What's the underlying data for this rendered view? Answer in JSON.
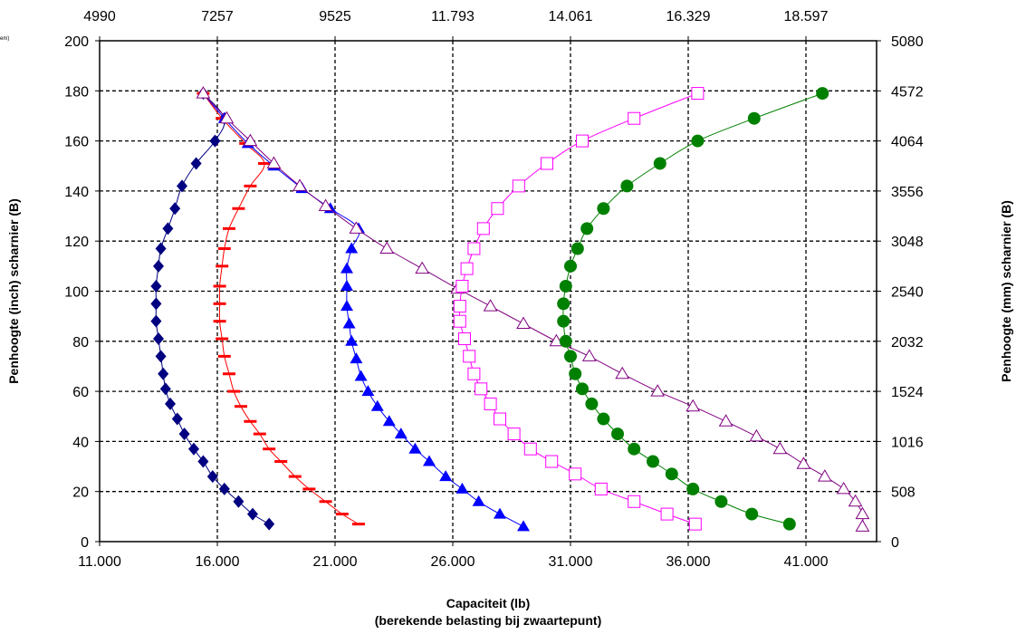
{
  "corner_note": "em)",
  "chart_data": {
    "type": "scatter",
    "title": "",
    "xlabel_line1": "Capaciteit (lb)",
    "xlabel_line2": "(berekende belasting bij zwaartepunt)",
    "ylabel_left": "Penhoogte (inch) scharnier (B)",
    "ylabel_right": "Penhoogte (mm) scharnier (B)",
    "xlim": [
      11000,
      44000
    ],
    "ylim": [
      0,
      200
    ],
    "grid": true,
    "legend": "none",
    "x_ticks_bottom": [
      {
        "value": 11000,
        "label": "11.000"
      },
      {
        "value": 16000,
        "label": "16.000"
      },
      {
        "value": 21000,
        "label": "21.000"
      },
      {
        "value": 26000,
        "label": "26.000"
      },
      {
        "value": 31000,
        "label": "31.000"
      },
      {
        "value": 36000,
        "label": "36.000"
      },
      {
        "value": 41000,
        "label": "41.000"
      }
    ],
    "x_ticks_top": [
      {
        "value": 11000,
        "label": "4990"
      },
      {
        "value": 16000,
        "label": "7257"
      },
      {
        "value": 21000,
        "label": "9525"
      },
      {
        "value": 26000,
        "label": "11.793"
      },
      {
        "value": 31000,
        "label": "14.061"
      },
      {
        "value": 36000,
        "label": "16.329"
      },
      {
        "value": 41000,
        "label": "18.597"
      }
    ],
    "y_ticks_left": [
      {
        "value": 0,
        "label": "0"
      },
      {
        "value": 20,
        "label": "20"
      },
      {
        "value": 40,
        "label": "40"
      },
      {
        "value": 60,
        "label": "60"
      },
      {
        "value": 80,
        "label": "80"
      },
      {
        "value": 100,
        "label": "100"
      },
      {
        "value": 120,
        "label": "120"
      },
      {
        "value": 140,
        "label": "140"
      },
      {
        "value": 160,
        "label": "160"
      },
      {
        "value": 180,
        "label": "180"
      },
      {
        "value": 200,
        "label": "200"
      }
    ],
    "y_ticks_right": [
      {
        "value": 0,
        "label": "0"
      },
      {
        "value": 20,
        "label": "508"
      },
      {
        "value": 40,
        "label": "1016"
      },
      {
        "value": 60,
        "label": "1524"
      },
      {
        "value": 80,
        "label": "2032"
      },
      {
        "value": 100,
        "label": "2540"
      },
      {
        "value": 120,
        "label": "3048"
      },
      {
        "value": 140,
        "label": "3556"
      },
      {
        "value": 160,
        "label": "4064"
      },
      {
        "value": 180,
        "label": "4572"
      },
      {
        "value": 200,
        "label": "5080"
      }
    ],
    "series": [
      {
        "marker": "diamond",
        "color": "#000080",
        "line_color": "#000080",
        "points": [
          [
            15400,
            179
          ],
          [
            16300,
            169
          ],
          [
            15900,
            160
          ],
          [
            15100,
            151
          ],
          [
            14500,
            142
          ],
          [
            14200,
            133
          ],
          [
            13900,
            125
          ],
          [
            13600,
            117
          ],
          [
            13500,
            110
          ],
          [
            13400,
            102
          ],
          [
            13400,
            95
          ],
          [
            13400,
            88
          ],
          [
            13500,
            81
          ],
          [
            13600,
            74
          ],
          [
            13700,
            67
          ],
          [
            13800,
            61
          ],
          [
            14000,
            55
          ],
          [
            14300,
            49
          ],
          [
            14600,
            43
          ],
          [
            15000,
            37
          ],
          [
            15400,
            32
          ],
          [
            15800,
            26
          ],
          [
            16300,
            21
          ],
          [
            16900,
            16
          ],
          [
            17500,
            11
          ],
          [
            18200,
            7
          ]
        ]
      },
      {
        "marker": "dash",
        "color": "#ff0000",
        "line_color": "#ff0000",
        "points": [
          [
            15400,
            179
          ],
          [
            16200,
            169
          ],
          [
            17200,
            159
          ],
          [
            18000,
            151
          ],
          [
            17400,
            142
          ],
          [
            16900,
            133
          ],
          [
            16500,
            125
          ],
          [
            16300,
            117
          ],
          [
            16200,
            110
          ],
          [
            16100,
            102
          ],
          [
            16100,
            95
          ],
          [
            16100,
            88
          ],
          [
            16200,
            81
          ],
          [
            16300,
            74
          ],
          [
            16500,
            67
          ],
          [
            16700,
            60
          ],
          [
            17000,
            54
          ],
          [
            17400,
            48
          ],
          [
            17800,
            43
          ],
          [
            18200,
            37
          ],
          [
            18700,
            32
          ],
          [
            19300,
            26
          ],
          [
            19900,
            21
          ],
          [
            20600,
            16
          ],
          [
            21300,
            11
          ],
          [
            22000,
            7
          ]
        ]
      },
      {
        "marker": "triangle",
        "color": "#0000ff",
        "line_color": "#0000ff",
        "points": [
          [
            15400,
            179
          ],
          [
            16300,
            169
          ],
          [
            17300,
            159
          ],
          [
            18400,
            150
          ],
          [
            19600,
            141
          ],
          [
            20800,
            133
          ],
          [
            22000,
            125
          ],
          [
            21700,
            117
          ],
          [
            21500,
            109
          ],
          [
            21500,
            102
          ],
          [
            21500,
            94
          ],
          [
            21600,
            87
          ],
          [
            21700,
            80
          ],
          [
            21900,
            73
          ],
          [
            22100,
            66
          ],
          [
            22400,
            60
          ],
          [
            22800,
            54
          ],
          [
            23300,
            48
          ],
          [
            23800,
            43
          ],
          [
            24400,
            37
          ],
          [
            25000,
            32
          ],
          [
            25700,
            26
          ],
          [
            26400,
            21
          ],
          [
            27100,
            16
          ],
          [
            28000,
            11
          ],
          [
            29000,
            6
          ]
        ]
      },
      {
        "marker": "triangle-open",
        "color": "#800080",
        "line_color": "#800080",
        "points": [
          [
            15400,
            179
          ],
          [
            16400,
            169
          ],
          [
            17400,
            160
          ],
          [
            18400,
            151
          ],
          [
            19500,
            142
          ],
          [
            20600,
            134
          ],
          [
            21900,
            125
          ],
          [
            23200,
            117
          ],
          [
            24700,
            109
          ],
          [
            26200,
            101
          ],
          [
            27600,
            94
          ],
          [
            29000,
            87
          ],
          [
            30400,
            80
          ],
          [
            31800,
            74
          ],
          [
            33200,
            67
          ],
          [
            34700,
            60
          ],
          [
            36200,
            54
          ],
          [
            37600,
            48
          ],
          [
            38900,
            42
          ],
          [
            39900,
            37
          ],
          [
            40900,
            31
          ],
          [
            41800,
            26
          ],
          [
            42600,
            21
          ],
          [
            43100,
            16
          ],
          [
            43400,
            11
          ],
          [
            43400,
            6
          ]
        ]
      },
      {
        "marker": "square-open",
        "color": "#ff00ff",
        "line_color": "#ff00ff",
        "points": [
          [
            36400,
            179
          ],
          [
            33700,
            169
          ],
          [
            31500,
            160
          ],
          [
            30000,
            151
          ],
          [
            28800,
            142
          ],
          [
            27900,
            133
          ],
          [
            27300,
            125
          ],
          [
            26900,
            117
          ],
          [
            26600,
            109
          ],
          [
            26400,
            102
          ],
          [
            26300,
            94
          ],
          [
            26300,
            88
          ],
          [
            26500,
            81
          ],
          [
            26700,
            74
          ],
          [
            26900,
            67
          ],
          [
            27200,
            61
          ],
          [
            27600,
            55
          ],
          [
            28000,
            49
          ],
          [
            28600,
            43
          ],
          [
            29300,
            37
          ],
          [
            30200,
            32
          ],
          [
            31200,
            27
          ],
          [
            32300,
            21
          ],
          [
            33700,
            16
          ],
          [
            35100,
            11
          ],
          [
            36300,
            7
          ]
        ]
      },
      {
        "marker": "circle",
        "color": "#008000",
        "line_color": "#008000",
        "points": [
          [
            41700,
            179
          ],
          [
            38800,
            169
          ],
          [
            36400,
            160
          ],
          [
            34800,
            151
          ],
          [
            33400,
            142
          ],
          [
            32400,
            133
          ],
          [
            31700,
            125
          ],
          [
            31300,
            117
          ],
          [
            31000,
            110
          ],
          [
            30800,
            102
          ],
          [
            30700,
            95
          ],
          [
            30700,
            88
          ],
          [
            30800,
            80
          ],
          [
            31000,
            74
          ],
          [
            31200,
            67
          ],
          [
            31500,
            61
          ],
          [
            31900,
            55
          ],
          [
            32400,
            49
          ],
          [
            33000,
            43
          ],
          [
            33700,
            37
          ],
          [
            34500,
            32
          ],
          [
            35300,
            27
          ],
          [
            36200,
            21
          ],
          [
            37400,
            16
          ],
          [
            38700,
            11
          ],
          [
            40300,
            7
          ]
        ]
      }
    ]
  }
}
